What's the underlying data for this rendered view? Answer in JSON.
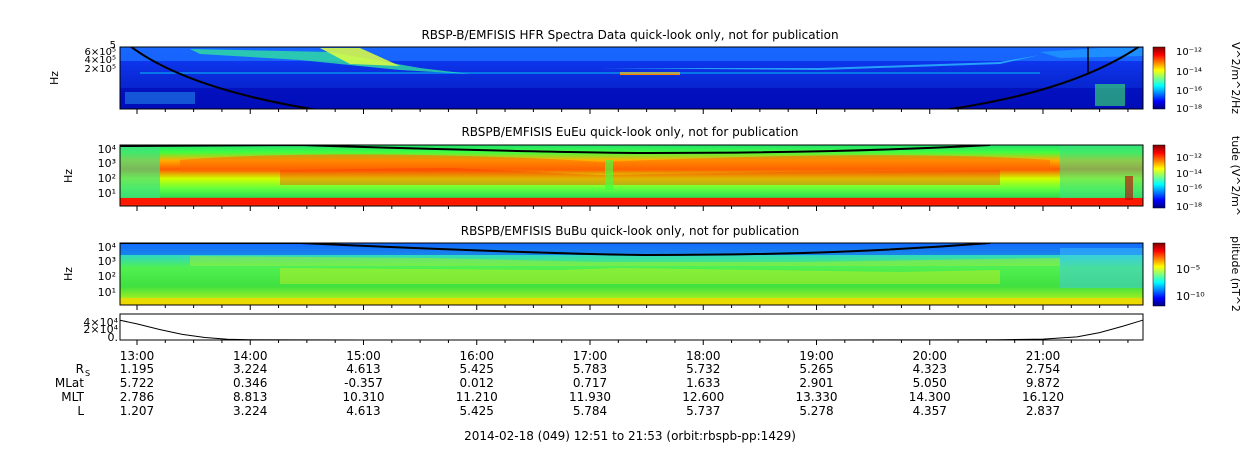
{
  "chart_data": [
    {
      "type": "heatmap",
      "title": "RBSP-B/EMFISIS  HFR Spectra Data quick-look only, not for publication",
      "ylabel": "Hz",
      "yticks": [
        "6×10⁵",
        "4×10⁵",
        "2×10⁵"
      ],
      "ytop_label": "5",
      "colorbar": {
        "label": "V^2/m^2/Hz",
        "ticks": [
          "10⁻¹²",
          "10⁻¹⁴",
          "10⁻¹⁶",
          "10⁻¹⁸"
        ]
      }
    },
    {
      "type": "heatmap",
      "title": "RBSPB/EMFISIS  EuEu quick-look only, not for publication",
      "ylabel": "Hz",
      "yticks": [
        "10⁴",
        "10³",
        "10²",
        "10¹"
      ],
      "colorbar": {
        "label": "tude (V^2/m^",
        "ticks": [
          "10⁻¹²",
          "10⁻¹⁴",
          "10⁻¹⁶",
          "10⁻¹⁸"
        ]
      }
    },
    {
      "type": "heatmap",
      "title": "RBSPB/EMFISIS  BuBu quick-look only, not for publication",
      "ylabel": "Hz",
      "yticks": [
        "10⁴",
        "10³",
        "10²",
        "10¹"
      ],
      "colorbar": {
        "label": "plitude (nT^2",
        "ticks": [
          "10⁻⁵",
          "10⁻¹⁰"
        ]
      }
    },
    {
      "type": "line",
      "yticks": [
        "4×10⁴",
        "2×10⁴",
        "0."
      ],
      "x_hours": [
        12.85,
        13.0,
        13.2,
        13.4,
        13.6,
        13.8,
        14.0,
        14.5,
        15.0,
        16.0,
        17.0,
        18.0,
        19.0,
        20.0,
        20.6,
        21.0,
        21.3,
        21.5,
        21.7,
        21.88
      ],
      "y": [
        32000,
        26000,
        17000,
        9000,
        4000,
        1200,
        400,
        150,
        80,
        60,
        55,
        60,
        70,
        120,
        400,
        1500,
        5000,
        12000,
        22000,
        32000
      ],
      "ylim": [
        0,
        42000
      ]
    }
  ],
  "ephemeris": {
    "times": [
      "13:00",
      "14:00",
      "15:00",
      "16:00",
      "17:00",
      "18:00",
      "19:00",
      "20:00",
      "21:00"
    ],
    "rows": [
      {
        "label": "R",
        "subscript": "S",
        "values": [
          "1.195",
          "3.224",
          "4.613",
          "5.425",
          "5.783",
          "5.732",
          "5.265",
          "4.323",
          "2.754"
        ]
      },
      {
        "label": "MLat",
        "values": [
          "5.722",
          "0.346",
          "-0.357",
          "0.012",
          "0.717",
          "1.633",
          "2.901",
          "5.050",
          "9.872"
        ]
      },
      {
        "label": "MLT",
        "values": [
          "2.786",
          "8.813",
          "10.310",
          "11.210",
          "11.930",
          "12.600",
          "13.330",
          "14.300",
          "16.120"
        ]
      },
      {
        "label": "L",
        "values": [
          "1.207",
          "3.224",
          "4.613",
          "5.425",
          "5.784",
          "5.737",
          "5.278",
          "4.357",
          "2.837"
        ]
      }
    ]
  },
  "footer": "2014-02-18 (049) 12:51 to 21:53 (orbit:rbspb-pp:1429)",
  "colors": {
    "jet": [
      "#00007f",
      "#0000ff",
      "#0080ff",
      "#00ffff",
      "#80ff80",
      "#ffff00",
      "#ff8000",
      "#ff0000",
      "#7f0000"
    ]
  }
}
